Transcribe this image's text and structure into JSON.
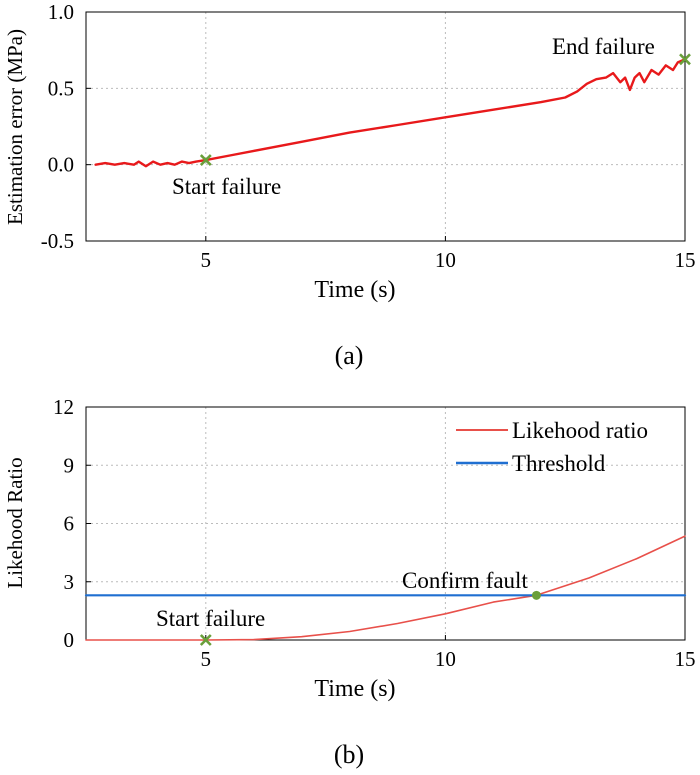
{
  "colors": {
    "estimation_line": "#e8191b",
    "likelihood_line": "#e8504a",
    "threshold_line": "#1f6fd1",
    "marker": "#6a9f3a",
    "grid": "#bcbcbc",
    "axis": "#000000"
  },
  "chart_data": [
    {
      "id": "a",
      "type": "line",
      "caption": "(a)",
      "xlabel": "Time (s)",
      "ylabel": "Estimation error (MPa)",
      "xlim": [
        2.5,
        15
      ],
      "ylim": [
        -0.5,
        1.0
      ],
      "xticks": [
        5,
        10,
        15
      ],
      "xtick_labels": [
        "5",
        "10",
        "15"
      ],
      "yticks": [
        -0.5,
        0.0,
        0.5,
        1.0
      ],
      "ytick_labels": [
        "-0.5",
        "0.0",
        "0.5",
        "1.0"
      ],
      "grid": true,
      "series": [
        {
          "name": "Estimation error",
          "x": [
            2.7,
            2.9,
            3.1,
            3.3,
            3.5,
            3.6,
            3.75,
            3.9,
            4.05,
            4.2,
            4.35,
            4.5,
            4.65,
            4.8,
            5.0,
            5.5,
            6.0,
            7.0,
            8.0,
            9.0,
            10.0,
            11.0,
            12.0,
            12.5,
            12.75,
            12.95,
            13.15,
            13.35,
            13.5,
            13.65,
            13.75,
            13.85,
            13.95,
            14.05,
            14.15,
            14.3,
            14.45,
            14.6,
            14.75,
            14.85,
            15.0
          ],
          "y": [
            0.0,
            0.01,
            0.0,
            0.01,
            0.0,
            0.02,
            -0.01,
            0.02,
            0.0,
            0.01,
            0.0,
            0.02,
            0.01,
            0.02,
            0.03,
            0.06,
            0.09,
            0.15,
            0.21,
            0.26,
            0.31,
            0.36,
            0.41,
            0.44,
            0.48,
            0.53,
            0.56,
            0.57,
            0.6,
            0.54,
            0.57,
            0.49,
            0.57,
            0.6,
            0.54,
            0.62,
            0.59,
            0.65,
            0.62,
            0.67,
            0.69
          ]
        }
      ],
      "markers": [
        {
          "label": "Start failure",
          "x": 5.0,
          "y": 0.03,
          "symbol": "x"
        },
        {
          "label": "End failure",
          "x": 15.0,
          "y": 0.69,
          "symbol": "x"
        }
      ]
    },
    {
      "id": "b",
      "type": "line",
      "caption": "(b)",
      "xlabel": "Time (s)",
      "ylabel": "Likehood Ratio",
      "xlim": [
        2.5,
        15
      ],
      "ylim": [
        0,
        12
      ],
      "xticks": [
        5,
        10,
        15
      ],
      "xtick_labels": [
        "5",
        "10",
        "15"
      ],
      "yticks": [
        0,
        3,
        6,
        9,
        12
      ],
      "ytick_labels": [
        "0",
        "3",
        "6",
        "9",
        "12"
      ],
      "grid": true,
      "legend_position": "top-right",
      "series": [
        {
          "name": "Likehood ratio",
          "x": [
            2.5,
            5.0,
            6.0,
            7.0,
            8.0,
            9.0,
            10.0,
            11.0,
            11.9,
            13.0,
            14.0,
            15.0
          ],
          "y": [
            0,
            0,
            0.02,
            0.17,
            0.44,
            0.85,
            1.35,
            1.95,
            2.3,
            3.2,
            4.2,
            5.35
          ]
        },
        {
          "name": "Threshold",
          "x": [
            2.5,
            15.0
          ],
          "y": [
            2.3,
            2.3
          ]
        }
      ],
      "markers": [
        {
          "label": "Start failure",
          "x": 5.0,
          "y": 0.0,
          "symbol": "x"
        },
        {
          "label": "Confirm fault",
          "x": 11.9,
          "y": 2.3,
          "symbol": "dot"
        }
      ]
    }
  ]
}
